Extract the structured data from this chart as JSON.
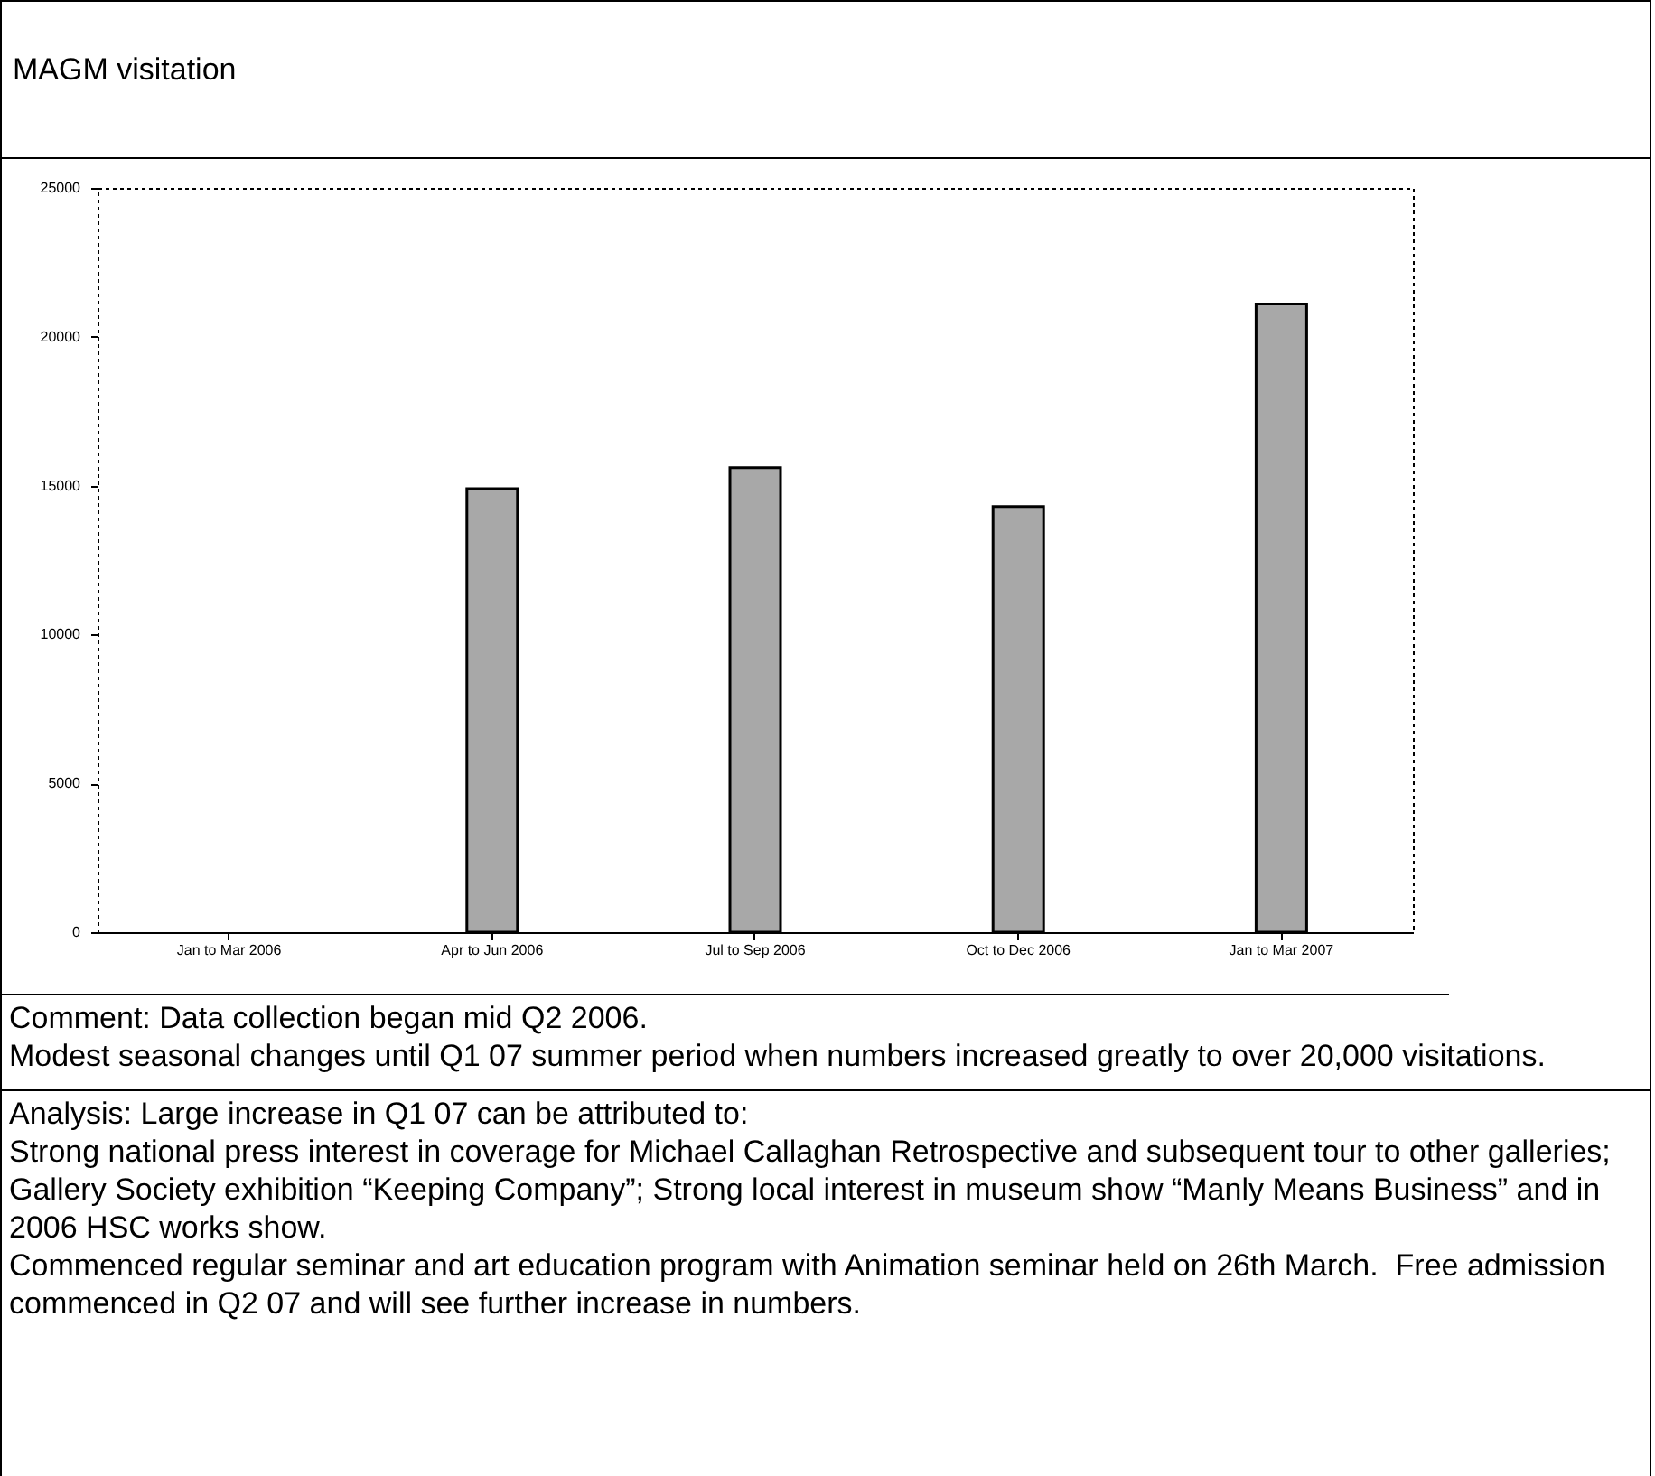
{
  "chart_data": {
    "type": "bar",
    "title": "MAGM visitation",
    "categories": [
      "Jan to Mar 2006",
      "Apr to Jun 2006",
      "Jul to Sep 2006",
      "Oct to Dec 2006",
      "Jan to Mar 2007"
    ],
    "values": [
      null,
      14900,
      15600,
      14300,
      21100
    ],
    "color": "#a8a8a8",
    "ylim": [
      0,
      25000
    ],
    "yticks": [
      0,
      5000,
      10000,
      15000,
      20000,
      25000
    ],
    "annotations": [
      "Comment: Data collection began mid Q2 2006.",
      "Modest seasonal changes until Q1 07 summer period when numbers increased greatly to over 20,000 visitations.",
      "Analysis: Large increase in Q1 07 can be attributed to:",
      "Strong national press interest in coverage for Michael Callaghan Retrospective and subsequent tour to other galleries; Gallery Society exhibition “Keeping Company”; Strong local interest in museum show “Manly Means Business” and in 2006 HSC works show.",
      "Commenced regular seminar and art education program with Animation seminar held on 26th March.  Free admission commenced in Q2 07 and will see further increase in numbers."
    ]
  }
}
